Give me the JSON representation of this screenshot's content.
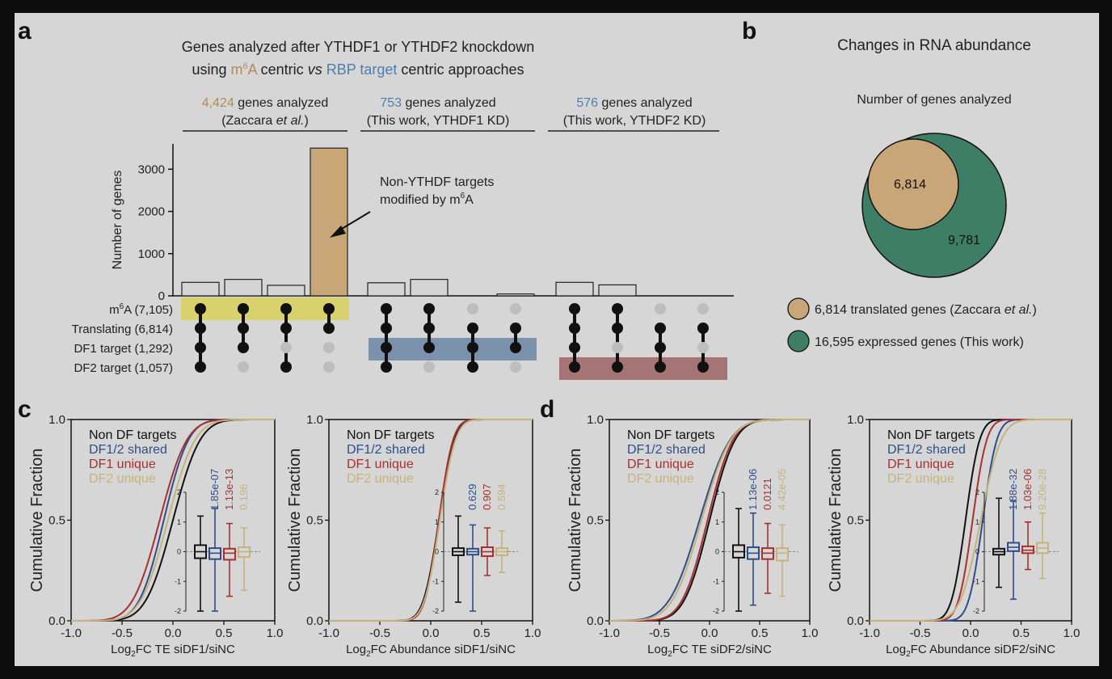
{
  "panel_a": {
    "label": "a",
    "title_line1": "Genes analyzed after YTHDF1 or YTHDF2 knockdown",
    "title_line2": {
      "p1": "using ",
      "m6a_base": "m",
      "m6a_sup": "6",
      "m6a_tail": "A",
      "p2": " centric ",
      "vs": "vs",
      "p3": " ",
      "rbp": "RBP target",
      "p4": " centric approaches"
    },
    "groups": [
      {
        "count": "4,424",
        "rest": " genes analyzed",
        "source_pre": "(Zaccara ",
        "source_em": "et al.",
        "source_post": ")"
      },
      {
        "count": "753",
        "rest": " genes analyzed",
        "source": "(This work, YTHDF1 KD)"
      },
      {
        "count": "576",
        "rest": " genes analyzed",
        "source": "(This work, YTHDF2 KD)"
      }
    ],
    "annotation_line1": "Non-YTHDF targets",
    "annotation_line2_base": "modified by m",
    "annotation_line2_sup": "6",
    "annotation_line2_tail": "A",
    "row_labels": [
      {
        "base": "m",
        "sup": "6",
        "tail": "A (7,105)"
      },
      {
        "base": "Translating (6,814)",
        "sup": "",
        "tail": ""
      },
      {
        "base": "DF1 target (1,292)",
        "sup": "",
        "tail": ""
      },
      {
        "base": "DF2 target (1,057)",
        "sup": "",
        "tail": ""
      }
    ],
    "colors": {
      "m6a": "#b38a5a",
      "rbp": "#4f7eaa",
      "tan_bar": "#c9a678",
      "gray_bar": "#d4d4d4",
      "yellow_band": "#d9d26c",
      "blue_band": "#7b92ad",
      "red_band": "#a57474"
    }
  },
  "panel_b": {
    "label": "b",
    "title": "Changes in RNA abundance",
    "subtitle": "Number of genes analyzed",
    "inner_value": "6,814",
    "outer_value": "9,781",
    "legend": [
      {
        "pre": "6,814 translated genes (Zaccara ",
        "em": "et al.",
        "post": ")",
        "color": "#c9a678"
      },
      {
        "pre": "16,595 expressed genes (This work)",
        "em": "",
        "post": "",
        "color": "#3f7e66"
      }
    ]
  },
  "panel_c_label": "c",
  "panel_d_label": "d",
  "chart_data": [
    {
      "type": "bar",
      "title": "",
      "ylabel": "Number of genes",
      "ylim": [
        0,
        3600
      ],
      "yticks": [
        "0",
        "1000",
        "2000",
        "3000"
      ],
      "categories": [
        "1",
        "2",
        "3",
        "4",
        "5",
        "6",
        "7",
        "8",
        "9",
        "10",
        "11",
        "12"
      ],
      "values": [
        320,
        390,
        250,
        3500,
        310,
        390,
        0,
        45,
        320,
        260,
        0,
        0
      ],
      "highlight": [
        false,
        false,
        false,
        true,
        false,
        false,
        false,
        false,
        false,
        false,
        false,
        false
      ],
      "matrix_rows": [
        "m6A (7,105)",
        "Translating (6,814)",
        "DF1 target (1,292)",
        "DF2 target (1,057)"
      ],
      "matrix": [
        [
          1,
          1,
          1,
          1,
          1,
          1,
          0,
          0,
          1,
          1,
          0,
          0
        ],
        [
          1,
          1,
          1,
          1,
          1,
          1,
          1,
          1,
          1,
          1,
          1,
          1
        ],
        [
          1,
          1,
          0,
          0,
          1,
          1,
          1,
          1,
          1,
          0,
          1,
          0
        ],
        [
          1,
          0,
          1,
          0,
          1,
          0,
          1,
          0,
          1,
          1,
          1,
          1
        ]
      ]
    },
    {
      "type": "line",
      "xlabel": "Log2FC TE siDF1/siNC",
      "ylabel": "Cumulative Fraction",
      "xlim": [
        -1.0,
        1.0
      ],
      "ylim": [
        0.0,
        1.0
      ],
      "xticks": [
        "-1.0",
        "-0.5",
        "0.0",
        "0.5",
        "1.0"
      ],
      "yticks": [
        "0.0",
        "0.5",
        "1.0"
      ],
      "series": [
        {
          "name": "Non DF targets",
          "color": "#111111",
          "median": 0.0,
          "spread": 0.21
        },
        {
          "name": "DF1/2 shared",
          "color": "#2c4e8c",
          "median": -0.09,
          "spread": 0.19
        },
        {
          "name": "DF1 unique",
          "color": "#a8302f",
          "median": -0.13,
          "spread": 0.21
        },
        {
          "name": "DF2 unique",
          "color": "#c6b27a",
          "median": -0.05,
          "spread": 0.21
        }
      ],
      "inset": {
        "ylim": [
          -2,
          2
        ],
        "yticks": [
          "2",
          "1",
          "0",
          "-1",
          "-2"
        ],
        "boxes": [
          {
            "median": 0.0,
            "q1": -0.22,
            "q3": 0.22,
            "low": -2.0,
            "high": 1.2
          },
          {
            "median": -0.05,
            "q1": -0.25,
            "q3": 0.12,
            "low": -2.0,
            "high": 1.45
          },
          {
            "median": -0.05,
            "q1": -0.27,
            "q3": 0.1,
            "low": -1.5,
            "high": 0.95
          },
          {
            "median": 0.0,
            "q1": -0.18,
            "q3": 0.15,
            "low": -1.3,
            "high": 0.8
          }
        ],
        "pvalues": [
          "1.85e-07",
          "1.13e-13",
          "0.196"
        ]
      }
    },
    {
      "type": "line",
      "xlabel": "Log2FC Abundance siDF1/siNC",
      "ylabel": "Cumulative Fraction",
      "xlim": [
        -1.0,
        1.0
      ],
      "ylim": [
        0.0,
        1.0
      ],
      "xticks": [
        "-1.0",
        "-0.5",
        "0.0",
        "0.5",
        "1.0"
      ],
      "yticks": [
        "0.0",
        "0.5",
        "1.0"
      ],
      "series": [
        {
          "name": "Non DF targets",
          "color": "#111111",
          "median": 0.08,
          "spread": 0.12
        },
        {
          "name": "DF1/2 shared",
          "color": "#2c4e8c",
          "median": 0.08,
          "spread": 0.11
        },
        {
          "name": "DF1 unique",
          "color": "#a8302f",
          "median": 0.08,
          "spread": 0.11
        },
        {
          "name": "DF2 unique",
          "color": "#c6b27a",
          "median": 0.09,
          "spread": 0.12
        }
      ],
      "inset": {
        "ylim": [
          -2,
          2
        ],
        "yticks": [
          "2",
          "1",
          "0",
          "-1",
          "-2"
        ],
        "boxes": [
          {
            "median": 0.0,
            "q1": -0.12,
            "q3": 0.12,
            "low": -1.7,
            "high": 1.2
          },
          {
            "median": 0.0,
            "q1": -0.1,
            "q3": 0.1,
            "low": -2.0,
            "high": 0.9
          },
          {
            "median": 0.0,
            "q1": -0.15,
            "q3": 0.15,
            "low": -0.8,
            "high": 0.8
          },
          {
            "median": 0.0,
            "q1": -0.12,
            "q3": 0.12,
            "low": -0.7,
            "high": 0.7
          }
        ],
        "pvalues": [
          "0.629",
          "0.907",
          "0.594"
        ]
      }
    },
    {
      "type": "line",
      "xlabel": "Log2FC TE siDF2/siNC",
      "ylabel": "Cumulative Fraction",
      "xlim": [
        -1.0,
        1.0
      ],
      "ylim": [
        0.0,
        1.0
      ],
      "xticks": [
        "-1.0",
        "-0.5",
        "0.0",
        "0.5",
        "1.0"
      ],
      "yticks": [
        "0.0",
        "0.5",
        "1.0"
      ],
      "series": [
        {
          "name": "Non DF targets",
          "color": "#111111",
          "median": 0.0,
          "spread": 0.2
        },
        {
          "name": "DF1/2 shared",
          "color": "#2c4e8c",
          "median": -0.1,
          "spread": 0.24
        },
        {
          "name": "DF1 unique",
          "color": "#a8302f",
          "median": -0.02,
          "spread": 0.2
        },
        {
          "name": "DF2 unique",
          "color": "#c6b27a",
          "median": -0.08,
          "spread": 0.23
        }
      ],
      "inset": {
        "ylim": [
          -2,
          2
        ],
        "yticks": [
          "2",
          "1",
          "0",
          "-1",
          "-2"
        ],
        "boxes": [
          {
            "median": 0.0,
            "q1": -0.2,
            "q3": 0.22,
            "low": -2.0,
            "high": 1.45
          },
          {
            "median": -0.05,
            "q1": -0.25,
            "q3": 0.15,
            "low": -1.8,
            "high": 1.3
          },
          {
            "median": -0.05,
            "q1": -0.25,
            "q3": 0.12,
            "low": -1.4,
            "high": 0.95
          },
          {
            "median": -0.05,
            "q1": -0.3,
            "q3": 0.12,
            "low": -1.5,
            "high": 0.9
          }
        ],
        "pvalues": [
          "1.13e-06",
          "0.0121",
          "4.42e-05"
        ]
      }
    },
    {
      "type": "line",
      "xlabel": "Log2FC Abundance siDF2/siNC",
      "ylabel": "Cumulative Fraction",
      "xlim": [
        -1.0,
        1.0
      ],
      "ylim": [
        0.0,
        1.0
      ],
      "xticks": [
        "-1.0",
        "-0.5",
        "0.0",
        "0.5",
        "1.0"
      ],
      "yticks": [
        "0.0",
        "0.5",
        "1.0"
      ],
      "series": [
        {
          "name": "Non DF targets",
          "color": "#111111",
          "median": -0.05,
          "spread": 0.11
        },
        {
          "name": "DF1/2 shared",
          "color": "#2c4e8c",
          "median": 0.12,
          "spread": 0.11
        },
        {
          "name": "DF1 unique",
          "color": "#a8302f",
          "median": 0.02,
          "spread": 0.11
        },
        {
          "name": "DF2 unique",
          "color": "#c6b27a",
          "median": 0.1,
          "spread": 0.16
        }
      ],
      "inset": {
        "ylim": [
          -2,
          2
        ],
        "yticks": [
          "2",
          "1",
          "0",
          "-1",
          "-2"
        ],
        "boxes": [
          {
            "median": 0.0,
            "q1": -0.1,
            "q3": 0.1,
            "low": -1.2,
            "high": 1.8
          },
          {
            "median": 0.15,
            "q1": 0.02,
            "q3": 0.3,
            "low": -1.6,
            "high": 1.7
          },
          {
            "median": 0.05,
            "q1": -0.05,
            "q3": 0.18,
            "low": -0.6,
            "high": 1.0
          },
          {
            "median": 0.12,
            "q1": -0.05,
            "q3": 0.3,
            "low": -0.9,
            "high": 1.3
          }
        ],
        "pvalues": [
          "1.88e-32",
          "1.03e-06",
          "9.20e-28"
        ]
      }
    }
  ]
}
